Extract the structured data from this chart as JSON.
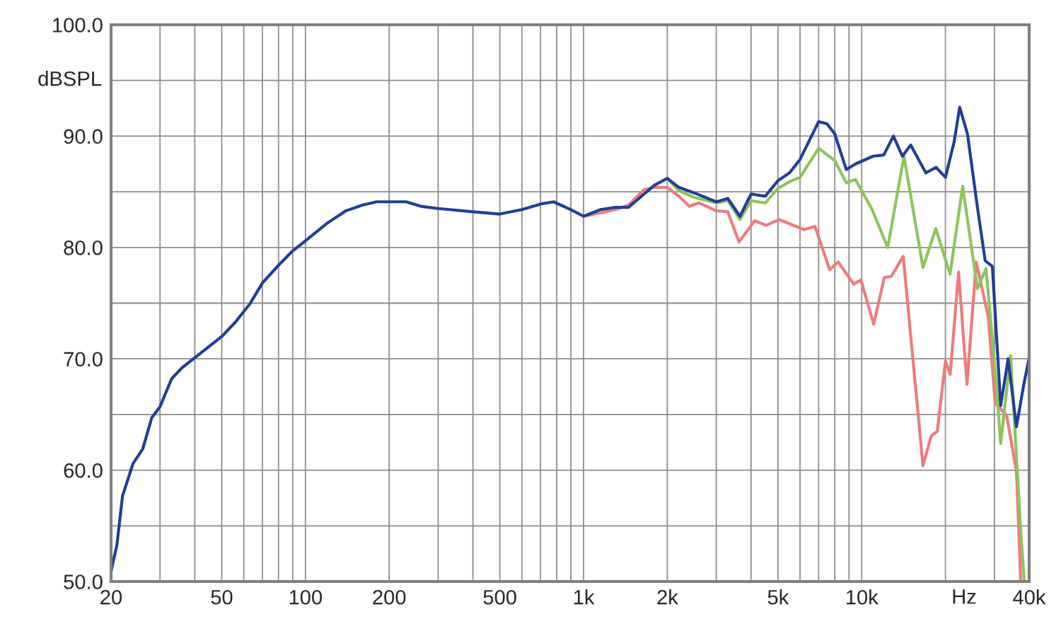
{
  "chart_data": {
    "type": "line",
    "xlabel": "Hz",
    "ylabel": "dBSPL",
    "log": "x",
    "grid": true,
    "line_style": "solid",
    "marker": "none",
    "xlim": [
      20,
      40000
    ],
    "ylim": [
      50,
      100
    ],
    "xticks": [
      20,
      {
        "value": 30,
        "label": null
      },
      {
        "value": 40,
        "label": null
      },
      50,
      {
        "value": 60,
        "label": null
      },
      {
        "value": 70,
        "label": null
      },
      {
        "value": 80,
        "label": null
      },
      {
        "value": 90,
        "label": null
      },
      100,
      200,
      {
        "value": 300,
        "label": null
      },
      {
        "value": 400,
        "label": null
      },
      500,
      {
        "value": 600,
        "label": null
      },
      {
        "value": 700,
        "label": null
      },
      {
        "value": 800,
        "label": null
      },
      {
        "value": 900,
        "label": null
      },
      {
        "value": 1000,
        "label": "1k"
      },
      {
        "value": 2000,
        "label": "2k"
      },
      {
        "value": 3000,
        "label": null
      },
      {
        "value": 4000,
        "label": null
      },
      {
        "value": 5000,
        "label": "5k"
      },
      {
        "value": 6000,
        "label": null
      },
      {
        "value": 7000,
        "label": null
      },
      {
        "value": 8000,
        "label": null
      },
      {
        "value": 9000,
        "label": null
      },
      {
        "value": 10000,
        "label": "10k"
      },
      {
        "value": 20000,
        "label": null
      },
      {
        "value": 30000,
        "label": null
      },
      {
        "value": 40000,
        "label": "40k"
      }
    ],
    "yticks": [
      {
        "value": 50,
        "label": "50.0"
      },
      {
        "value": 55,
        "label": null
      },
      {
        "value": 60,
        "label": "60.0"
      },
      {
        "value": 65,
        "label": null
      },
      {
        "value": 70,
        "label": "70.0"
      },
      {
        "value": 75,
        "label": null
      },
      {
        "value": 80,
        "label": "80.0"
      },
      {
        "value": 85,
        "label": null
      },
      {
        "value": 90,
        "label": "90.0"
      },
      {
        "value": 95,
        "label": null
      },
      {
        "value": 100,
        "label": "100.0"
      }
    ],
    "series": [
      {
        "color": "#ee7b7b",
        "x": [
          1000,
          1150,
          1300,
          1450,
          1650,
          1800,
          2000,
          2200,
          2400,
          2600,
          3000,
          3300,
          3620,
          4120,
          4530,
          5060,
          6210,
          6790,
          7670,
          8230,
          9360,
          9930,
          11040,
          12060,
          12770,
          14100,
          16600,
          17800,
          18700,
          20000,
          20800,
          22300,
          23900,
          25800,
          28500,
          30200,
          33200,
          36000,
          37300
        ],
        "values": [
          82.8,
          83.1,
          83.4,
          83.8,
          85.2,
          85.4,
          85.4,
          84.6,
          83.7,
          84.0,
          83.3,
          83.2,
          80.5,
          82.4,
          82.0,
          82.5,
          81.6,
          81.9,
          78.0,
          78.7,
          76.7,
          77.1,
          73.1,
          77.3,
          77.4,
          79.2,
          60.4,
          63.1,
          63.5,
          69.8,
          68.6,
          77.8,
          67.7,
          78.7,
          73.8,
          66.0,
          64.9,
          59.9,
          50.0
        ]
      },
      {
        "color": "#8dc45a",
        "x": [
          2000,
          2200,
          2500,
          3000,
          3300,
          3650,
          4000,
          4500,
          5000,
          5500,
          6000,
          7000,
          8000,
          8800,
          9500,
          10900,
          12400,
          14190,
          16600,
          18460,
          20780,
          23070,
          26070,
          27990,
          30400,
          31600,
          34300,
          37300,
          38400
        ],
        "values": [
          86.2,
          85.1,
          84.5,
          84.0,
          84.2,
          82.5,
          84.2,
          84.0,
          85.3,
          85.9,
          86.3,
          88.9,
          87.8,
          85.8,
          86.1,
          83.4,
          80.0,
          88.2,
          78.2,
          81.7,
          77.6,
          85.5,
          76.3,
          78.1,
          68.0,
          62.4,
          70.3,
          54.6,
          50.0
        ]
      },
      {
        "color": "#1f3f96",
        "x": [
          20,
          21,
          22,
          24,
          26,
          28,
          30,
          33,
          36,
          40,
          45,
          50,
          56,
          63,
          70,
          80,
          90,
          100,
          120,
          140,
          160,
          180,
          200,
          230,
          260,
          300,
          400,
          500,
          600,
          700,
          780,
          900,
          1000,
          1150,
          1300,
          1450,
          1650,
          1800,
          2000,
          2200,
          2500,
          3000,
          3300,
          3650,
          4000,
          4500,
          5000,
          5500,
          6000,
          7000,
          7500,
          8000,
          8800,
          9500,
          11000,
          12000,
          13000,
          14000,
          15000,
          17000,
          18500,
          20000,
          21500,
          22500,
          24000,
          26000,
          27800,
          29500,
          30400,
          31600,
          33600,
          36000,
          38200,
          40000
        ],
        "values": [
          50.9,
          53.3,
          57.7,
          60.6,
          61.9,
          64.7,
          65.7,
          68.2,
          69.2,
          70.1,
          71.1,
          72.0,
          73.3,
          74.9,
          76.8,
          78.4,
          79.7,
          80.6,
          82.2,
          83.3,
          83.8,
          84.1,
          84.1,
          84.1,
          83.7,
          83.5,
          83.2,
          83.0,
          83.4,
          83.9,
          84.1,
          83.4,
          82.8,
          83.4,
          83.6,
          83.6,
          84.8,
          85.6,
          86.2,
          85.4,
          84.9,
          84.1,
          84.4,
          82.8,
          84.8,
          84.6,
          86.0,
          86.7,
          87.9,
          91.3,
          91.1,
          90.2,
          87.0,
          87.5,
          88.2,
          88.3,
          90.0,
          88.2,
          89.2,
          86.7,
          87.2,
          86.3,
          89.5,
          92.6,
          90.2,
          83.8,
          78.8,
          78.3,
          72.8,
          65.8,
          70.0,
          63.9,
          67.6,
          70.1
        ]
      }
    ]
  }
}
